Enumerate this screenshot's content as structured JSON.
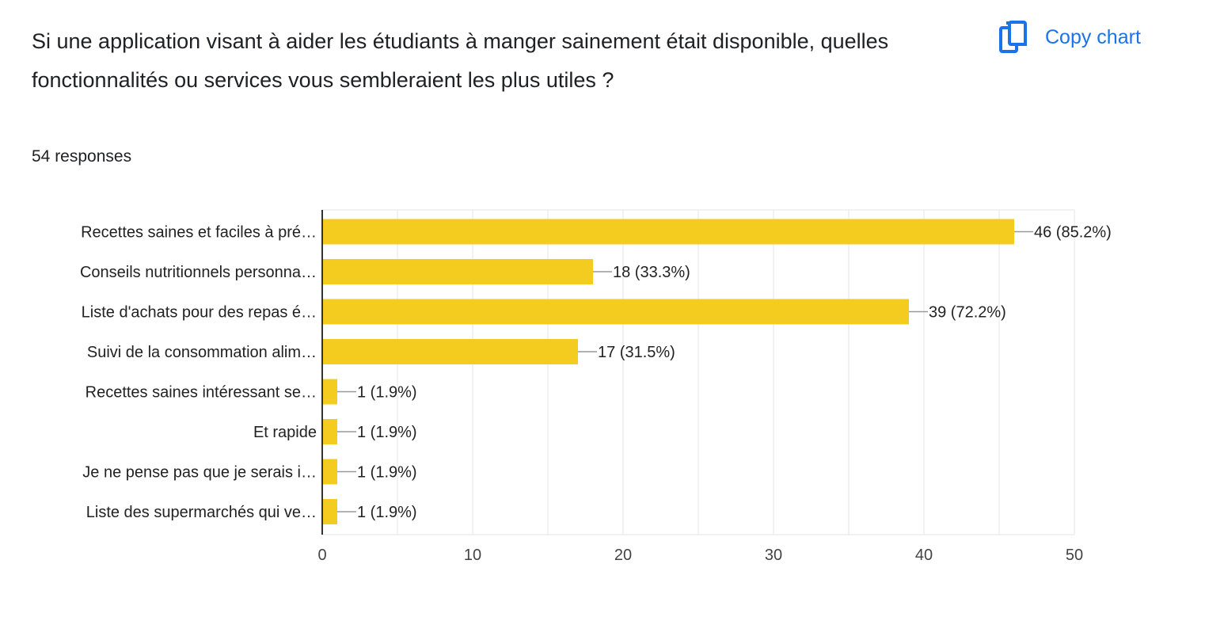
{
  "question": {
    "title": "Si une application visant à aider les étudiants à manger sainement était disponible, quelles fonctionnalités ou services vous sembleraient les plus utiles ?",
    "responses": "54 responses"
  },
  "toolbar": {
    "copy_label": "Copy chart",
    "copy_icon": "copy-icon"
  },
  "colors": {
    "bar": "#f4cc1f",
    "accent": "#1a73e8",
    "grid": "#e6e6e6",
    "axis": "#333333"
  },
  "chart_data": {
    "type": "bar",
    "orientation": "horizontal",
    "categories": [
      "Recettes saines et faciles à pré…",
      "Conseils nutritionnels personna…",
      "Liste d'achats pour des repas é…",
      "Suivi de la consommation alim…",
      "Recettes saines intéressant se…",
      "Et rapide",
      "Je ne pense pas que je serais i…",
      "Liste des supermarchés qui ve…"
    ],
    "values": [
      46,
      18,
      39,
      17,
      1,
      1,
      1,
      1
    ],
    "data_labels": [
      "46 (85.2%)",
      "18 (33.3%)",
      "39 (72.2%)",
      "17 (31.5%)",
      "1 (1.9%)",
      "1 (1.9%)",
      "1 (1.9%)",
      "1 (1.9%)"
    ],
    "xlim": [
      0,
      50
    ],
    "ticks": [
      0,
      10,
      20,
      30,
      40,
      50
    ],
    "tick_labels": [
      "0",
      "10",
      "20",
      "30",
      "40",
      "50"
    ],
    "minor_gridlines": true,
    "grid": true,
    "legend": "none"
  }
}
